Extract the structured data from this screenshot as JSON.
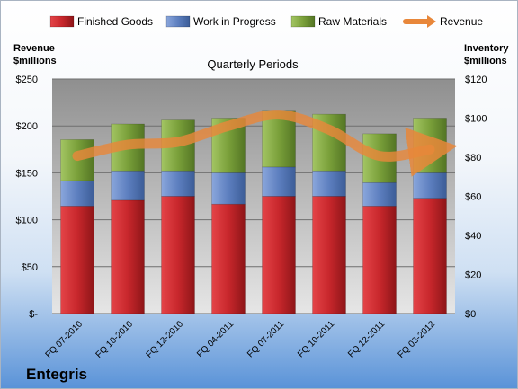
{
  "chart_data": {
    "type": "bar",
    "stacked": true,
    "title": "Quarterly Periods",
    "categories": [
      "FQ 07-2010",
      "FQ 10-2010",
      "FQ 12-2010",
      "FQ 04-2011",
      "FQ 07-2011",
      "FQ 10-2011",
      "FQ 12-2011",
      "FQ 03-2012"
    ],
    "series": [
      {
        "name": "Finished Goods",
        "axis": "right",
        "color": "#c0262b",
        "values": [
          55,
          58,
          60,
          56,
          60,
          60,
          55,
          59
        ]
      },
      {
        "name": "Work in Progress",
        "axis": "right",
        "color": "#5d7fbf",
        "values": [
          13,
          15,
          13,
          16,
          15,
          13,
          12,
          13
        ]
      },
      {
        "name": "Raw Materials",
        "axis": "right",
        "color": "#7aa03a",
        "values": [
          21,
          24,
          26,
          28,
          29,
          29,
          25,
          28
        ]
      },
      {
        "name": "Revenue",
        "type": "line",
        "axis": "left",
        "color": "#e8873a",
        "values": [
          168,
          180,
          183,
          200,
          212,
          196,
          168,
          175
        ]
      }
    ],
    "y_left": {
      "label": "Revenue $millions",
      "min": 0,
      "max": 250,
      "ticks": [
        0,
        50,
        100,
        150,
        200,
        250
      ],
      "tick_labels": [
        "$-",
        "$50",
        "$100",
        "$150",
        "$200",
        "$250"
      ]
    },
    "y_right": {
      "label": "Inventory $millions",
      "min": 0,
      "max": 120,
      "ticks": [
        0,
        20,
        40,
        60,
        80,
        100,
        120
      ],
      "tick_labels": [
        "$0",
        "$20",
        "$40",
        "$60",
        "$80",
        "$100",
        "$120"
      ]
    },
    "grid": true,
    "legend": "top"
  },
  "labels": {
    "left_axis_line1": "Revenue",
    "left_axis_line2": "$millions",
    "right_axis_line1": "Inventory",
    "right_axis_line2": "$millions",
    "company": "Entegris"
  }
}
